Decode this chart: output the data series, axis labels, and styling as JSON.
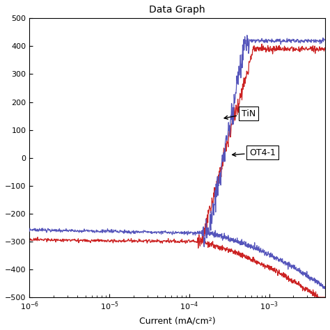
{
  "title": "Data Graph",
  "xlabel": "Current (mA/cm²)",
  "xlim_log": [
    -6,
    -2.3
  ],
  "ylim": [
    -500,
    500
  ],
  "yticks": [
    -500,
    -400,
    -300,
    -200,
    -100,
    0,
    100,
    200,
    300,
    400,
    500
  ],
  "background_color": "#ffffff",
  "tin_color": "#5555bb",
  "ot4_color": "#cc2222",
  "annotation_TiN": "TiN",
  "annotation_OT4": "OT4-1",
  "e_corr_tin": -270,
  "e_corr_ot4": -300,
  "x_corr_tin_log": -3.75,
  "x_corr_ot4_log": -3.85,
  "tin_plateau": 420,
  "ot4_max": 390
}
